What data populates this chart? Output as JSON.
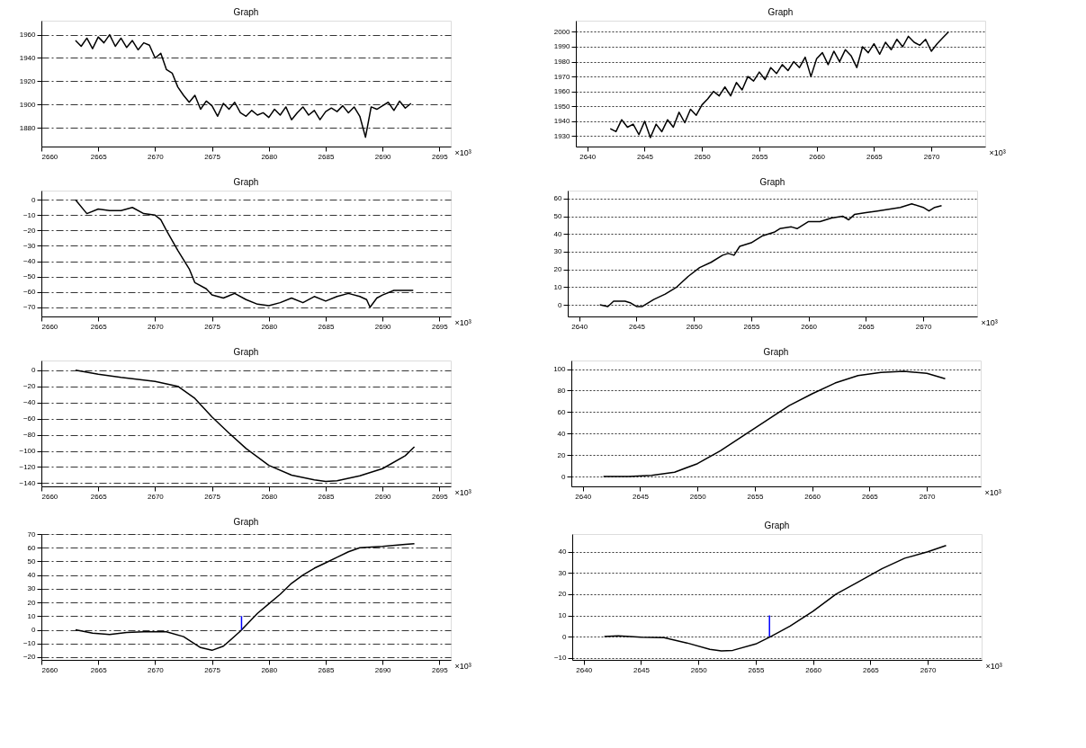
{
  "chart_data": [
    {
      "type": "line",
      "title": "Graph",
      "xlabel": "×10³",
      "xlim": [
        2660,
        2696
      ],
      "xticks": [
        2660,
        2665,
        2670,
        2675,
        2680,
        2685,
        2690,
        2695
      ],
      "ylim": [
        1864,
        1972
      ],
      "yticks": [
        1880,
        1900,
        1920,
        1940,
        1960
      ],
      "grid": "y",
      "line_style": "solid",
      "series": [
        {
          "color": "#000000",
          "x": [
            2663,
            2663.5,
            2664,
            2664.5,
            2665,
            2665.5,
            2666,
            2666.5,
            2667,
            2667.5,
            2668,
            2668.5,
            2669,
            2669.5,
            2670,
            2670.5,
            2671,
            2671.5,
            2672,
            2672.5,
            2673,
            2673.5,
            2674,
            2674.5,
            2675,
            2675.5,
            2676,
            2676.5,
            2677,
            2677.5,
            2678,
            2678.5,
            2679,
            2679.5,
            2680,
            2680.5,
            2681,
            2681.5,
            2682,
            2682.5,
            2683,
            2683.5,
            2684,
            2684.5,
            2685,
            2685.5,
            2686,
            2686.5,
            2687,
            2687.5,
            2688,
            2688.5,
            2689,
            2689.5,
            2690,
            2690.5,
            2691,
            2691.5,
            2692,
            2692.5
          ],
          "values": [
            1955,
            1950,
            1957,
            1948,
            1958,
            1953,
            1960,
            1950,
            1957,
            1949,
            1955,
            1947,
            1953,
            1951,
            1940,
            1944,
            1930,
            1927,
            1915,
            1908,
            1902,
            1908,
            1896,
            1903,
            1899,
            1890,
            1901,
            1896,
            1902,
            1893,
            1890,
            1895,
            1891,
            1893,
            1889,
            1896,
            1891,
            1898,
            1887,
            1893,
            1898,
            1891,
            1895,
            1887,
            1894,
            1897,
            1894,
            1899,
            1893,
            1898,
            1890,
            1872,
            1898,
            1896,
            1899,
            1902,
            1895,
            1903,
            1897,
            1901
          ]
        }
      ]
    },
    {
      "type": "line",
      "title": "Graph",
      "xlabel": "×10³",
      "xlim": [
        2639,
        2674.7
      ],
      "xticks": [
        2640,
        2645,
        2650,
        2655,
        2660,
        2665,
        2670
      ],
      "ylim": [
        1923,
        2007.5
      ],
      "yticks": [
        1930,
        1940,
        1950,
        1960,
        1970,
        1980,
        1990,
        2000
      ],
      "grid": "y",
      "line_style": "solid",
      "series": [
        {
          "color": "#000000",
          "x": [
            2642,
            2642.5,
            2643,
            2643.5,
            2644,
            2644.5,
            2645,
            2645.5,
            2646,
            2646.5,
            2647,
            2647.5,
            2648,
            2648.5,
            2649,
            2649.5,
            2650,
            2650.5,
            2651,
            2651.5,
            2652,
            2652.5,
            2653,
            2653.5,
            2654,
            2654.5,
            2655,
            2655.5,
            2656,
            2656.5,
            2657,
            2657.5,
            2658,
            2658.5,
            2659,
            2659.5,
            2660,
            2660.5,
            2661,
            2661.5,
            2662,
            2662.5,
            2663,
            2663.5,
            2664,
            2664.5,
            2665,
            2665.5,
            2666,
            2666.5,
            2667,
            2667.5,
            2668,
            2668.5,
            2669,
            2669.5,
            2670,
            2670.5,
            2671,
            2671.5
          ],
          "values": [
            1935,
            1933,
            1941,
            1936,
            1938,
            1931,
            1940,
            1929,
            1938,
            1933,
            1941,
            1936,
            1946,
            1939,
            1948,
            1944,
            1951,
            1955,
            1960,
            1957,
            1963,
            1957,
            1966,
            1961,
            1970,
            1967,
            1973,
            1968,
            1976,
            1972,
            1978,
            1974,
            1980,
            1976,
            1983,
            1970,
            1982,
            1986,
            1978,
            1987,
            1980,
            1988,
            1984,
            1976,
            1990,
            1986,
            1992,
            1985,
            1993,
            1988,
            1995,
            1990,
            1997,
            1993,
            1991,
            1995,
            1987,
            1992,
            1996,
            2000
          ]
        }
      ]
    },
    {
      "type": "line",
      "title": "Graph",
      "xlabel": "×10³",
      "xlim": [
        2660,
        2696
      ],
      "xticks": [
        2660,
        2665,
        2670,
        2675,
        2680,
        2685,
        2690,
        2695
      ],
      "ylim": [
        -76,
        6
      ],
      "yticks": [
        -70,
        -60,
        -50,
        -40,
        -30,
        -20,
        -10,
        0
      ],
      "grid": "y",
      "line_style": "solid",
      "series": [
        {
          "color": "#000000",
          "x": [
            2663,
            2664,
            2665,
            2666,
            2667,
            2668,
            2669,
            2670,
            2670.5,
            2671,
            2672,
            2673,
            2673.5,
            2674.5,
            2675,
            2675.5,
            2676,
            2677,
            2678,
            2679,
            2680,
            2681,
            2682,
            2683,
            2684,
            2685,
            2686,
            2687,
            2688,
            2688.6,
            2688.9,
            2689.5,
            2690,
            2691,
            2692,
            2692.7
          ],
          "values": [
            0,
            -9,
            -6,
            -7,
            -7,
            -5,
            -9,
            -10,
            -13,
            -20,
            -33,
            -45,
            -54,
            -58,
            -62,
            -63,
            -64,
            -61,
            -65,
            -68,
            -69,
            -67,
            -64,
            -67,
            -63,
            -66,
            -63,
            -61,
            -63,
            -65,
            -70,
            -64,
            -62,
            -59,
            -59,
            -59
          ]
        }
      ]
    },
    {
      "type": "line",
      "title": "Graph",
      "xlabel": "×10³",
      "xlim": [
        2639,
        2674.7
      ],
      "xticks": [
        2640,
        2645,
        2650,
        2655,
        2660,
        2665,
        2670
      ],
      "ylim": [
        -6.6,
        64.5
      ],
      "yticks": [
        0,
        10,
        20,
        30,
        40,
        50,
        60
      ],
      "grid": "y",
      "line_style": "solid",
      "series": [
        {
          "color": "#000000",
          "x": [
            2641.8,
            2642.5,
            2643,
            2644,
            2644.5,
            2645,
            2645.5,
            2646.5,
            2647.5,
            2648.5,
            2649.5,
            2650.5,
            2651.5,
            2652.5,
            2653,
            2653.5,
            2654,
            2655,
            2655.5,
            2656,
            2657,
            2657.5,
            2658.5,
            2659,
            2660,
            2661,
            2662,
            2663,
            2663.5,
            2664,
            2665,
            2666,
            2667,
            2668,
            2669,
            2670,
            2670.5,
            2671,
            2671.6
          ],
          "values": [
            0,
            -1,
            2,
            2,
            1,
            -1,
            -1,
            3,
            6,
            10,
            16,
            21,
            24,
            28,
            29,
            28,
            33,
            35,
            37,
            39,
            41,
            43,
            44,
            43,
            47,
            47,
            49,
            50,
            48,
            51,
            52,
            53,
            54,
            55,
            57,
            55,
            53,
            55,
            56
          ]
        }
      ]
    },
    {
      "type": "line",
      "title": "Graph",
      "xlabel": "×10³",
      "xlim": [
        2660,
        2696
      ],
      "xticks": [
        2660,
        2665,
        2670,
        2675,
        2680,
        2685,
        2690,
        2695
      ],
      "ylim": [
        -144,
        12
      ],
      "yticks": [
        -140,
        -120,
        -100,
        -80,
        -60,
        -40,
        -20,
        0
      ],
      "grid": "y",
      "line_style": "solid",
      "series": [
        {
          "color": "#000000",
          "x": [
            2663,
            2665,
            2667,
            2670,
            2672,
            2673.5,
            2675,
            2676.5,
            2678,
            2680,
            2682,
            2684,
            2685,
            2686,
            2688,
            2690,
            2692,
            2692.8
          ],
          "values": [
            0,
            -5,
            -9,
            -14,
            -20,
            -35,
            -58,
            -78,
            -97,
            -118,
            -130,
            -136,
            -138,
            -137,
            -131,
            -122,
            -106,
            -95
          ]
        }
      ]
    },
    {
      "type": "line",
      "title": "Graph",
      "xlabel": "×10³",
      "xlim": [
        2639,
        2674.7
      ],
      "xticks": [
        2640,
        2645,
        2650,
        2655,
        2660,
        2665,
        2670
      ],
      "ylim": [
        -9.2,
        108
      ],
      "yticks": [
        0,
        20,
        40,
        60,
        80,
        100
      ],
      "grid": "y",
      "line_style": "solid",
      "series": [
        {
          "color": "#000000",
          "x": [
            2641.8,
            2644,
            2646,
            2648,
            2650,
            2652,
            2654,
            2656,
            2658,
            2660,
            2662,
            2664,
            2666,
            2668,
            2670,
            2671.6
          ],
          "values": [
            0,
            0,
            1,
            4,
            12,
            24,
            38,
            52,
            66,
            77,
            87,
            94,
            97,
            98,
            96,
            91
          ]
        }
      ]
    },
    {
      "type": "line",
      "title": "Graph",
      "xlabel": "×10³",
      "xlim": [
        2660,
        2696
      ],
      "xticks": [
        2660,
        2665,
        2670,
        2675,
        2680,
        2685,
        2690,
        2695
      ],
      "ylim": [
        -22,
        70
      ],
      "yticks": [
        -20,
        -10,
        0,
        10,
        20,
        30,
        40,
        50,
        60,
        70
      ],
      "grid": "y",
      "line_style": "solid",
      "series": [
        {
          "color": "#000000",
          "x": [
            2663,
            2664.5,
            2666,
            2667.5,
            2669,
            2671,
            2672.5,
            2674,
            2675,
            2676,
            2677.5,
            2679,
            2680,
            2681,
            2682,
            2683,
            2684,
            2685,
            2686,
            2687,
            2688,
            2690,
            2692,
            2692.8
          ],
          "values": [
            0,
            -2.5,
            -3.5,
            -2,
            -1.5,
            -1.5,
            -5,
            -13,
            -15,
            -12,
            -1,
            12,
            19,
            26,
            34,
            40,
            45,
            49,
            53,
            57,
            60,
            61,
            62.5,
            63
          ]
        },
        {
          "color": "#0000ff",
          "x": [
            2677.6,
            2677.6
          ],
          "values": [
            0,
            10
          ]
        }
      ]
    },
    {
      "type": "line",
      "title": "Graph",
      "xlabel": "×10³",
      "xlim": [
        2639,
        2674.7
      ],
      "xticks": [
        2640,
        2645,
        2650,
        2655,
        2660,
        2665,
        2670
      ],
      "ylim": [
        -11,
        48.4
      ],
      "yticks": [
        -10,
        0,
        10,
        20,
        30,
        40
      ],
      "grid": "y",
      "line_style": "solid",
      "series": [
        {
          "color": "#000000",
          "x": [
            2641.8,
            2643,
            2645,
            2647,
            2649,
            2651,
            2652,
            2653,
            2655,
            2656.3,
            2658,
            2660,
            2662,
            2664,
            2666,
            2668,
            2670,
            2671.6
          ],
          "values": [
            0,
            0.3,
            -0.3,
            -0.5,
            -3,
            -6,
            -6.8,
            -6.5,
            -3.5,
            0,
            5,
            12,
            20,
            26,
            32,
            37,
            40,
            43
          ]
        },
        {
          "color": "#0000ff",
          "x": [
            2656.2,
            2656.2
          ],
          "values": [
            0,
            10
          ]
        }
      ]
    }
  ]
}
